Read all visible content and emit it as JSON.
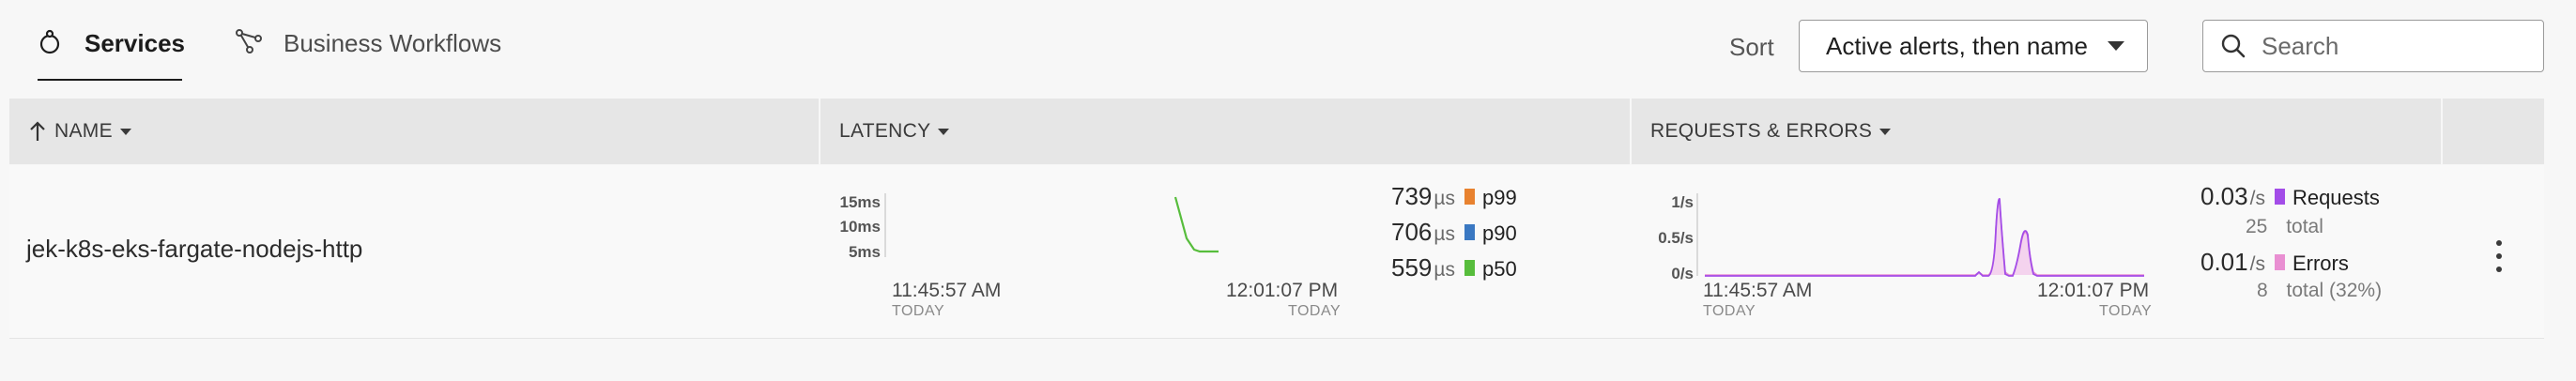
{
  "tabs": [
    {
      "label": "Services",
      "icon": "services-icon",
      "active": true
    },
    {
      "label": "Business Workflows",
      "icon": "workflow-icon",
      "active": false
    }
  ],
  "sort": {
    "label": "Sort",
    "value": "Active alerts, then name"
  },
  "search": {
    "placeholder": "Search",
    "value": ""
  },
  "table": {
    "columns": [
      {
        "label": "NAME",
        "sort_icon": "arrow-up-icon"
      },
      {
        "label": "LATENCY"
      },
      {
        "label": "REQUESTS & ERRORS"
      }
    ],
    "rows": [
      {
        "name": "jek-k8s-eks-fargate-nodejs-http",
        "latency": {
          "y_ticks": [
            "15ms",
            "10ms",
            "5ms"
          ],
          "time_start": "11:45:57 AM",
          "time_end": "12:01:07 PM",
          "day_start": "TODAY",
          "day_end": "TODAY",
          "p99": {
            "value": "739",
            "unit": "µs",
            "label": "p99",
            "color": "#e8822f"
          },
          "p90": {
            "value": "706",
            "unit": "µs",
            "label": "p90",
            "color": "#3a78c2"
          },
          "p50": {
            "value": "559",
            "unit": "µs",
            "label": "p50",
            "color": "#57bd3c"
          }
        },
        "requests_errors": {
          "y_ticks": [
            "1/s",
            "0.5/s",
            "0/s"
          ],
          "time_start": "11:45:57 AM",
          "time_end": "12:01:07 PM",
          "day_start": "TODAY",
          "day_end": "TODAY",
          "requests": {
            "value": "0.03",
            "unit": "/s",
            "label": "Requests",
            "total": "25",
            "total_label": "total",
            "color": "#a34de8"
          },
          "errors": {
            "value": "0.01",
            "unit": "/s",
            "label": "Errors",
            "total": "8",
            "total_label": "total (32%)",
            "color": "#e98fd2"
          }
        }
      }
    ]
  }
}
